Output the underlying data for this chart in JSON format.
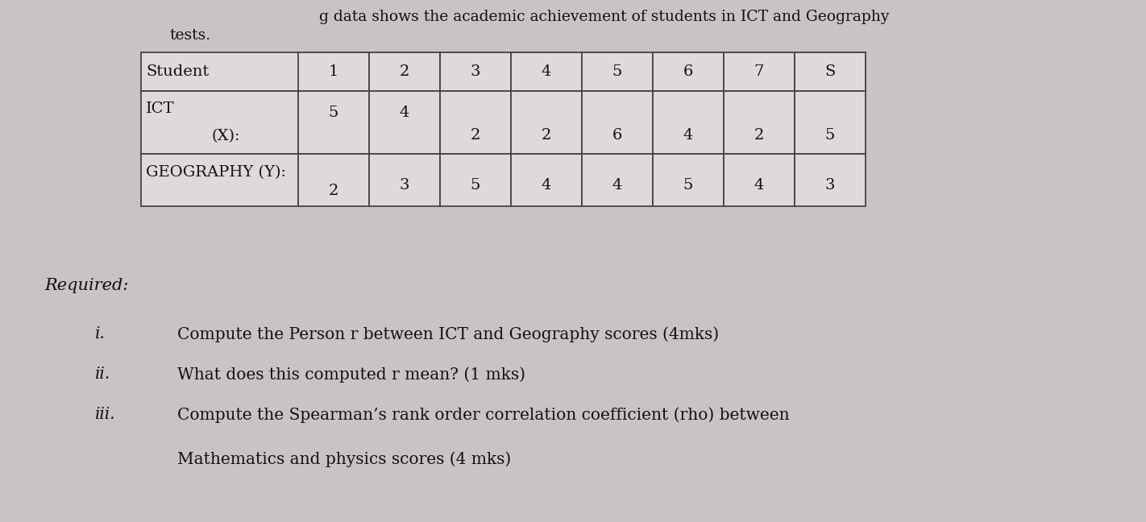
{
  "header_line1": "g data shows the academic achievement of students in ICT and Geography",
  "header_line2": "tests.",
  "table": {
    "col_headers": [
      "Student",
      "1",
      "2",
      "3",
      "4",
      "5",
      "6",
      "7",
      "S"
    ],
    "row1_label": "ICT",
    "row1_sublabel": "(X):",
    "row1_values": [
      "5",
      "4",
      "2",
      "2",
      "6",
      "4",
      "2",
      "5"
    ],
    "row2_label": "GEOGRAPHY (Y):",
    "row2_values": [
      "2",
      "3",
      "5",
      "4",
      "4",
      "5",
      "4",
      "3"
    ]
  },
  "required_label": "Required:",
  "items": [
    {
      "num": "i.",
      "text": "Compute the Person r between ICT and Geography scores (4mks)"
    },
    {
      "num": "ii.",
      "text": "What does this computed r mean? (1 mks)"
    },
    {
      "num": "iii.",
      "text": "Compute the Spearman’s rank order correlation coefficient (rho) between"
    },
    {
      "num": "",
      "text": "Mathematics and physics scores (4 mks)"
    }
  ],
  "bg_color": "#c8c4c4",
  "table_bg": "#dedad9",
  "text_color": "#111111",
  "border_color": "#444444"
}
